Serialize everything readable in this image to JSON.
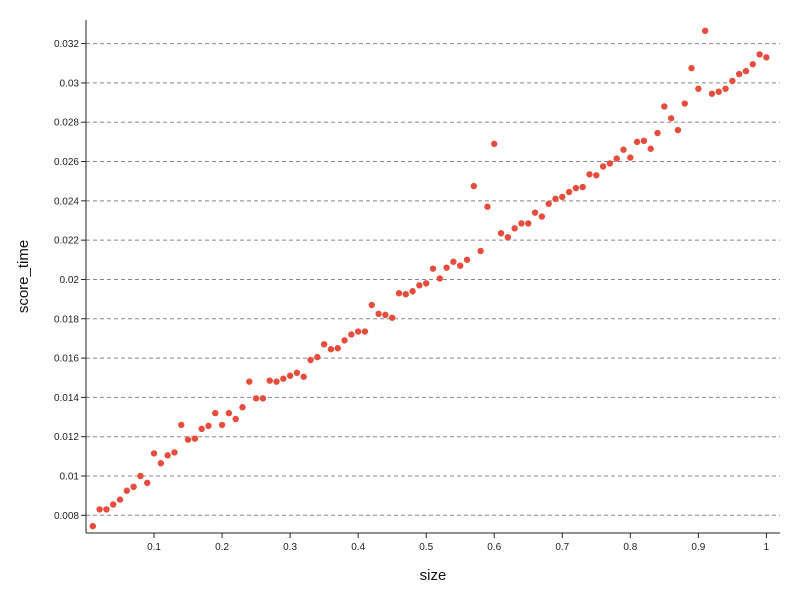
{
  "chart_data": {
    "type": "scatter",
    "title": "",
    "xlabel": "size",
    "ylabel": "score_time",
    "xlim": [
      0,
      1.02
    ],
    "ylim": [
      0.0071,
      0.0332
    ],
    "x_ticks": [
      0.1,
      0.2,
      0.3,
      0.4,
      0.5,
      0.6,
      0.7,
      0.8,
      0.9,
      1
    ],
    "x_tick_labels": [
      "0.1",
      "0.2",
      "0.3",
      "0.4",
      "0.5",
      "0.6",
      "0.7",
      "0.8",
      "0.9",
      "1"
    ],
    "y_ticks": [
      0.008,
      0.01,
      0.012,
      0.014,
      0.016,
      0.018,
      0.02,
      0.022,
      0.024,
      0.026,
      0.028,
      0.03,
      0.032
    ],
    "y_tick_labels": [
      "0.008",
      "0.01",
      "0.012",
      "0.014",
      "0.016",
      "0.018",
      "0.02",
      "0.022",
      "0.024",
      "0.026",
      "0.028",
      "0.03",
      "0.032"
    ],
    "grid": "horizontal-dashed",
    "marker_color": "#e74c3c",
    "points": [
      [
        0.01,
        0.00745
      ],
      [
        0.02,
        0.0083
      ],
      [
        0.03,
        0.0083
      ],
      [
        0.04,
        0.00855
      ],
      [
        0.05,
        0.0088
      ],
      [
        0.06,
        0.00925
      ],
      [
        0.07,
        0.00945
      ],
      [
        0.08,
        0.01
      ],
      [
        0.09,
        0.00965
      ],
      [
        0.1,
        0.01115
      ],
      [
        0.11,
        0.01065
      ],
      [
        0.12,
        0.01105
      ],
      [
        0.13,
        0.0112
      ],
      [
        0.14,
        0.0126
      ],
      [
        0.15,
        0.01185
      ],
      [
        0.16,
        0.0119
      ],
      [
        0.17,
        0.0124
      ],
      [
        0.18,
        0.01255
      ],
      [
        0.19,
        0.0132
      ],
      [
        0.2,
        0.0126
      ],
      [
        0.21,
        0.0132
      ],
      [
        0.22,
        0.0129
      ],
      [
        0.23,
        0.0135
      ],
      [
        0.24,
        0.0148
      ],
      [
        0.25,
        0.01395
      ],
      [
        0.26,
        0.01395
      ],
      [
        0.27,
        0.01485
      ],
      [
        0.28,
        0.0148
      ],
      [
        0.29,
        0.01495
      ],
      [
        0.3,
        0.0151
      ],
      [
        0.31,
        0.01525
      ],
      [
        0.32,
        0.01505
      ],
      [
        0.33,
        0.0159
      ],
      [
        0.34,
        0.01605
      ],
      [
        0.35,
        0.0167
      ],
      [
        0.36,
        0.01645
      ],
      [
        0.37,
        0.0165
      ],
      [
        0.38,
        0.0169
      ],
      [
        0.39,
        0.0172
      ],
      [
        0.4,
        0.01735
      ],
      [
        0.41,
        0.01735
      ],
      [
        0.42,
        0.0187
      ],
      [
        0.43,
        0.01825
      ],
      [
        0.44,
        0.0182
      ],
      [
        0.45,
        0.01805
      ],
      [
        0.46,
        0.0193
      ],
      [
        0.47,
        0.01925
      ],
      [
        0.48,
        0.0194
      ],
      [
        0.49,
        0.0197
      ],
      [
        0.5,
        0.0198
      ],
      [
        0.51,
        0.02055
      ],
      [
        0.52,
        0.02005
      ],
      [
        0.53,
        0.0206
      ],
      [
        0.54,
        0.0209
      ],
      [
        0.55,
        0.0207
      ],
      [
        0.56,
        0.021
      ],
      [
        0.57,
        0.02475
      ],
      [
        0.58,
        0.02145
      ],
      [
        0.59,
        0.0237
      ],
      [
        0.6,
        0.0269
      ],
      [
        0.61,
        0.02235
      ],
      [
        0.62,
        0.02215
      ],
      [
        0.63,
        0.0226
      ],
      [
        0.64,
        0.02285
      ],
      [
        0.65,
        0.02285
      ],
      [
        0.66,
        0.0234
      ],
      [
        0.67,
        0.0232
      ],
      [
        0.68,
        0.02385
      ],
      [
        0.69,
        0.0241
      ],
      [
        0.7,
        0.0242
      ],
      [
        0.71,
        0.02445
      ],
      [
        0.72,
        0.02465
      ],
      [
        0.73,
        0.0247
      ],
      [
        0.74,
        0.02535
      ],
      [
        0.75,
        0.0253
      ],
      [
        0.76,
        0.02575
      ],
      [
        0.77,
        0.0259
      ],
      [
        0.78,
        0.02615
      ],
      [
        0.79,
        0.0266
      ],
      [
        0.8,
        0.0262
      ],
      [
        0.81,
        0.027
      ],
      [
        0.82,
        0.02705
      ],
      [
        0.83,
        0.02665
      ],
      [
        0.84,
        0.02745
      ],
      [
        0.85,
        0.0288
      ],
      [
        0.86,
        0.0282
      ],
      [
        0.87,
        0.0276
      ],
      [
        0.88,
        0.02895
      ],
      [
        0.89,
        0.03075
      ],
      [
        0.9,
        0.0297
      ],
      [
        0.91,
        0.03265
      ],
      [
        0.92,
        0.02945
      ],
      [
        0.93,
        0.02955
      ],
      [
        0.94,
        0.0297
      ],
      [
        0.95,
        0.0301
      ],
      [
        0.96,
        0.03045
      ],
      [
        0.97,
        0.0306
      ],
      [
        0.98,
        0.03095
      ],
      [
        0.99,
        0.03145
      ],
      [
        1.0,
        0.0313
      ]
    ]
  }
}
